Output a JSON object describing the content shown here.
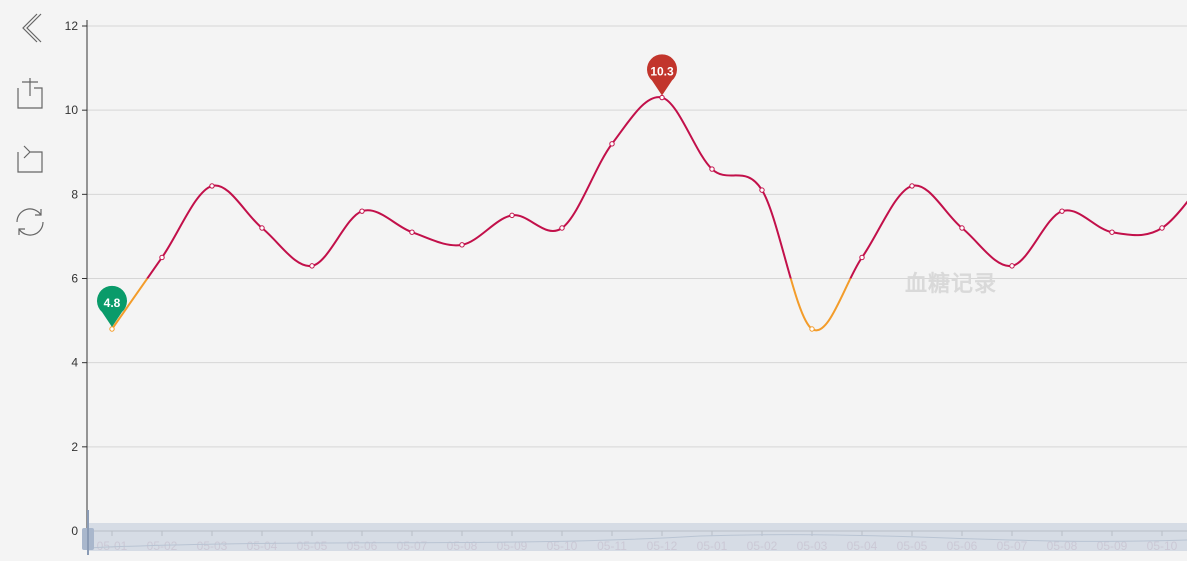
{
  "toolbox": {
    "items": [
      {
        "name": "back-icon"
      },
      {
        "name": "zoom-in-icon"
      },
      {
        "name": "zoom-reset-icon"
      },
      {
        "name": "restore-icon"
      }
    ]
  },
  "watermark": "血糖记录",
  "chart_data": {
    "type": "line",
    "categories": [
      "05-01",
      "05-02",
      "05-03",
      "05-04",
      "05-05",
      "05-06",
      "05-07",
      "05-08",
      "05-09",
      "05-10",
      "05-11",
      "05-12",
      "05-01",
      "05-02",
      "05-03",
      "05-04",
      "05-05",
      "05-06",
      "05-07",
      "05-08",
      "05-09",
      "05-10",
      "05-11"
    ],
    "values": [
      4.8,
      6.5,
      8.2,
      7.2,
      6.3,
      7.6,
      7.1,
      6.8,
      7.5,
      7.2,
      9.2,
      10.3,
      8.6,
      8.1,
      4.8,
      6.5,
      8.2,
      7.2,
      6.3,
      7.6,
      7.1,
      7.2,
      8.6
    ],
    "ylim": [
      0,
      12
    ],
    "yticks": [
      "0",
      "2",
      "4",
      "6",
      "8",
      "10",
      "12"
    ],
    "visual_map": {
      "low_threshold": 6,
      "low_color": "#f39c2a",
      "normal_color": "#c2104a"
    },
    "markers": [
      {
        "type": "min",
        "label": "4.8",
        "index": 0,
        "color": "#0a9b6a"
      },
      {
        "type": "max",
        "label": "10.3",
        "index": 11,
        "color": "#c2352c"
      }
    ],
    "grid": true,
    "grid_color": "#d6d6d6",
    "datazoom_color": "#d0d7e2",
    "title": "",
    "xlabel": "",
    "ylabel": ""
  }
}
